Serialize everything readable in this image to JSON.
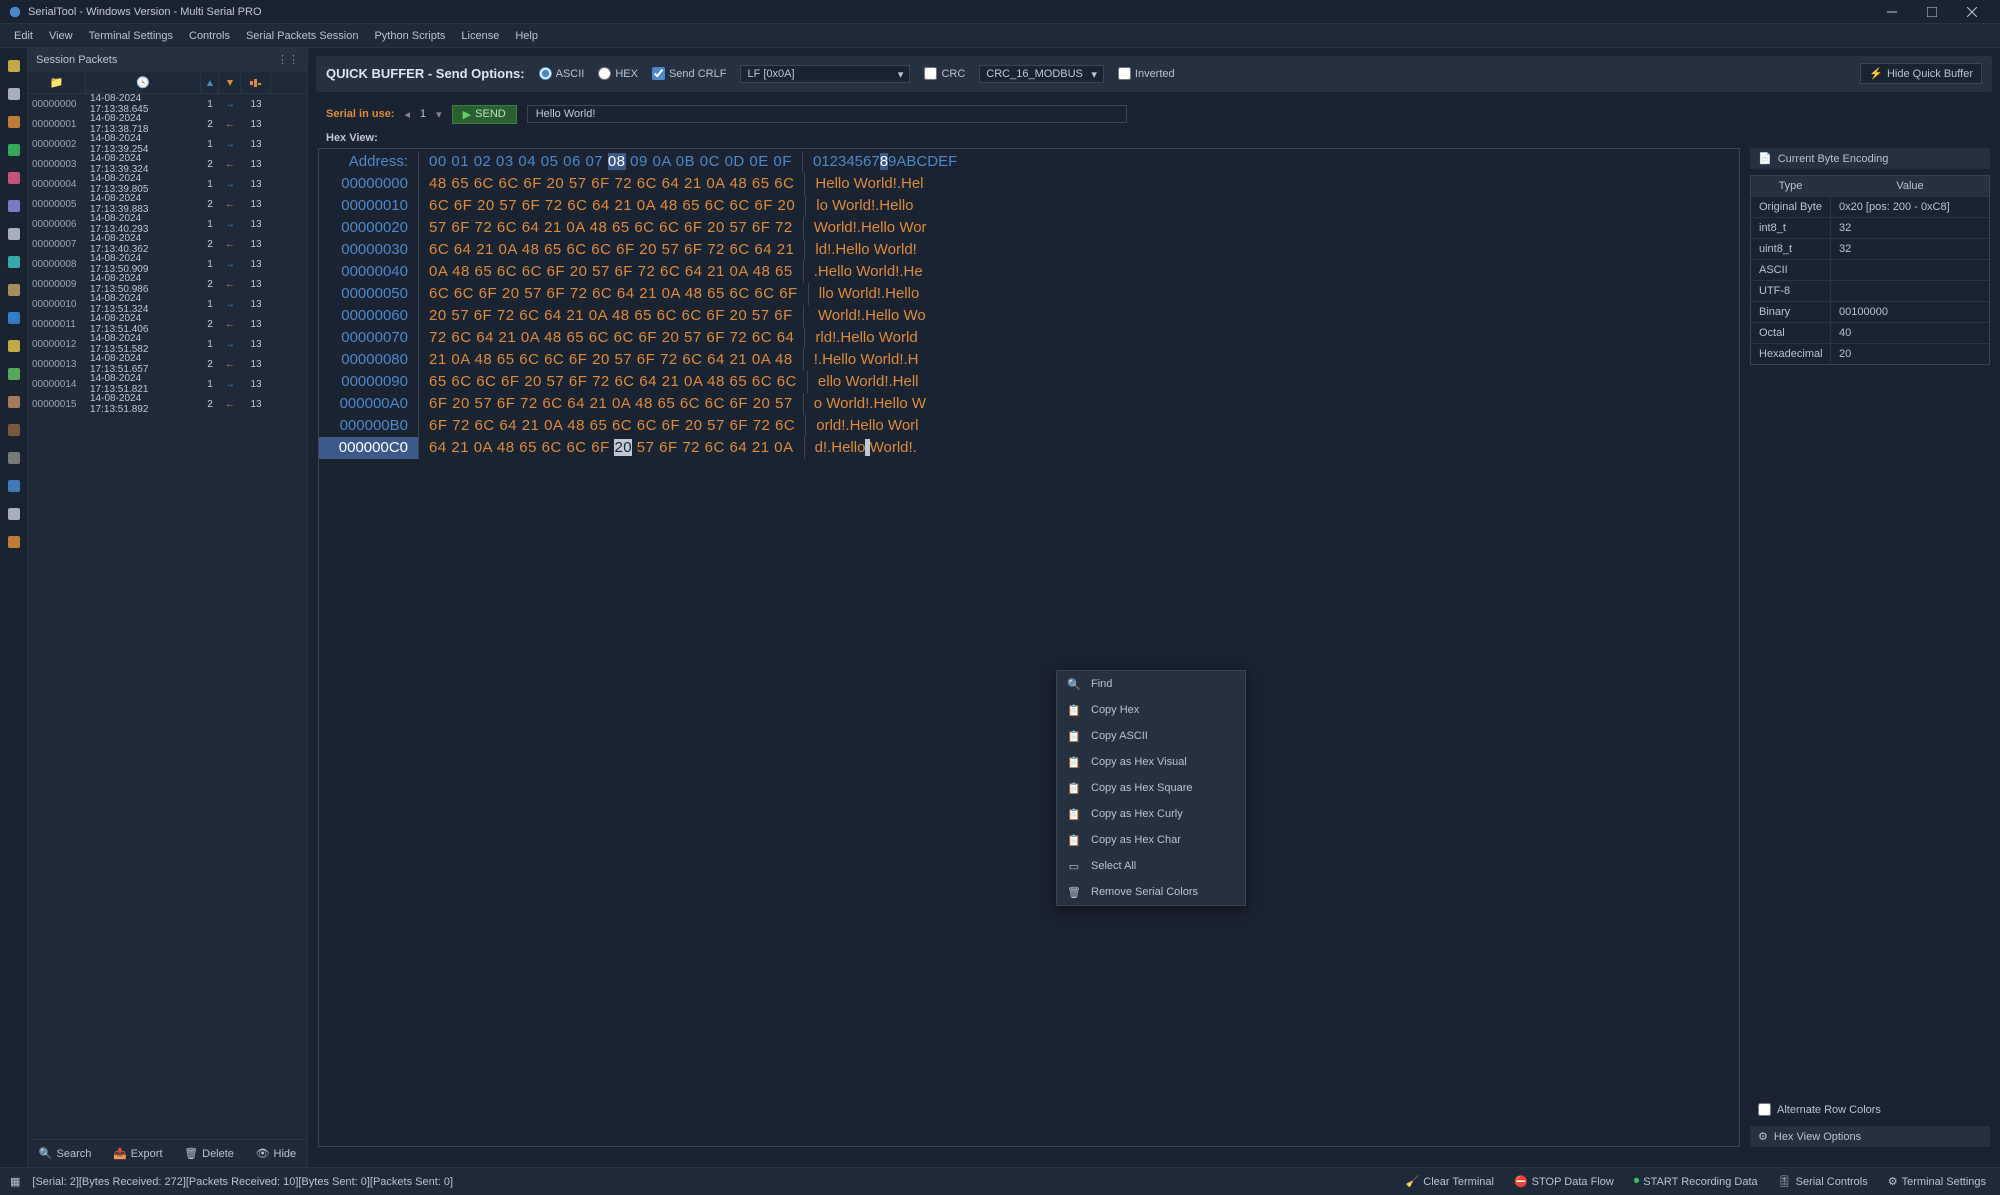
{
  "window": {
    "title": "SerialTool - Windows Version  - Multi Serial PRO"
  },
  "menubar": [
    "Edit",
    "View",
    "Terminal Settings",
    "Controls",
    "Serial Packets Session",
    "Python Scripts",
    "License",
    "Help"
  ],
  "session": {
    "title": "Session Packets",
    "rows": [
      {
        "id": "00000000",
        "time": "14-08-2024 17:13:38.645",
        "n": "1",
        "dir": "rx",
        "bytes": "13"
      },
      {
        "id": "00000001",
        "time": "14-08-2024 17:13:38.718",
        "n": "2",
        "dir": "tx",
        "bytes": "13"
      },
      {
        "id": "00000002",
        "time": "14-08-2024 17:13:39.254",
        "n": "1",
        "dir": "rx",
        "bytes": "13"
      },
      {
        "id": "00000003",
        "time": "14-08-2024 17:13:39.324",
        "n": "2",
        "dir": "tx",
        "bytes": "13"
      },
      {
        "id": "00000004",
        "time": "14-08-2024 17:13:39.805",
        "n": "1",
        "dir": "rx",
        "bytes": "13"
      },
      {
        "id": "00000005",
        "time": "14-08-2024 17:13:39.883",
        "n": "2",
        "dir": "tx",
        "bytes": "13"
      },
      {
        "id": "00000006",
        "time": "14-08-2024 17:13:40.293",
        "n": "1",
        "dir": "rx",
        "bytes": "13"
      },
      {
        "id": "00000007",
        "time": "14-08-2024 17:13:40.362",
        "n": "2",
        "dir": "tx",
        "bytes": "13"
      },
      {
        "id": "00000008",
        "time": "14-08-2024 17:13:50.909",
        "n": "1",
        "dir": "rx",
        "bytes": "13"
      },
      {
        "id": "00000009",
        "time": "14-08-2024 17:13:50.986",
        "n": "2",
        "dir": "tx",
        "bytes": "13"
      },
      {
        "id": "00000010",
        "time": "14-08-2024 17:13:51.324",
        "n": "1",
        "dir": "rx",
        "bytes": "13"
      },
      {
        "id": "00000011",
        "time": "14-08-2024 17:13:51.406",
        "n": "2",
        "dir": "tx",
        "bytes": "13"
      },
      {
        "id": "00000012",
        "time": "14-08-2024 17:13:51.582",
        "n": "1",
        "dir": "rx",
        "bytes": "13"
      },
      {
        "id": "00000013",
        "time": "14-08-2024 17:13:51.657",
        "n": "2",
        "dir": "tx",
        "bytes": "13"
      },
      {
        "id": "00000014",
        "time": "14-08-2024 17:13:51.821",
        "n": "1",
        "dir": "rx",
        "bytes": "13"
      },
      {
        "id": "00000015",
        "time": "14-08-2024 17:13:51.892",
        "n": "2",
        "dir": "tx",
        "bytes": "13"
      }
    ],
    "footer": {
      "search": "Search",
      "export": "Export",
      "delete": "Delete",
      "hide": "Hide"
    }
  },
  "quickbuf": {
    "title": "QUICK BUFFER - Send Options:",
    "ascii": "ASCII",
    "hex": "HEX",
    "sendcrlf": "Send CRLF",
    "lf_option": "LF [0x0A]",
    "crc": "CRC",
    "crc_option": "CRC_16_MODBUS",
    "inverted": "Inverted",
    "hide": "Hide Quick Buffer"
  },
  "serialbar": {
    "label": "Serial in use:",
    "port": "1",
    "send": "SEND",
    "input": "Hello World!"
  },
  "hexview": {
    "label": "Hex View:",
    "header_addr": "Address:",
    "header_bytes": "00 01 02 03 04 05 06 07 08 09 0A 0B 0C 0D 0E 0F",
    "header_ascii": "0123456789ABCDEF",
    "sel_byte_col": 8,
    "sel_ascii_col": 8,
    "rows": [
      {
        "addr": "00000000",
        "bytes": "48 65 6C 6C 6F 20 57 6F 72 6C 64 21 0A 48 65 6C",
        "ascii": "Hello World!.Hel"
      },
      {
        "addr": "00000010",
        "bytes": "6C 6F 20 57 6F 72 6C 64 21 0A 48 65 6C 6C 6F 20",
        "ascii": "lo World!.Hello "
      },
      {
        "addr": "00000020",
        "bytes": "57 6F 72 6C 64 21 0A 48 65 6C 6C 6F 20 57 6F 72",
        "ascii": "World!.Hello Wor"
      },
      {
        "addr": "00000030",
        "bytes": "6C 64 21 0A 48 65 6C 6C 6F 20 57 6F 72 6C 64 21",
        "ascii": "ld!.Hello World!"
      },
      {
        "addr": "00000040",
        "bytes": "0A 48 65 6C 6C 6F 20 57 6F 72 6C 64 21 0A 48 65",
        "ascii": ".Hello World!.He"
      },
      {
        "addr": "00000050",
        "bytes": "6C 6C 6F 20 57 6F 72 6C 64 21 0A 48 65 6C 6C 6F",
        "ascii": "llo World!.Hello"
      },
      {
        "addr": "00000060",
        "bytes": "20 57 6F 72 6C 64 21 0A 48 65 6C 6C 6F 20 57 6F",
        "ascii": " World!.Hello Wo"
      },
      {
        "addr": "00000070",
        "bytes": "72 6C 64 21 0A 48 65 6C 6C 6F 20 57 6F 72 6C 64",
        "ascii": "rld!.Hello World"
      },
      {
        "addr": "00000080",
        "bytes": "21 0A 48 65 6C 6C 6F 20 57 6F 72 6C 64 21 0A 48",
        "ascii": "!.Hello World!.H"
      },
      {
        "addr": "00000090",
        "bytes": "65 6C 6C 6F 20 57 6F 72 6C 64 21 0A 48 65 6C 6C",
        "ascii": "ello World!.Hell"
      },
      {
        "addr": "000000A0",
        "bytes": "6F 20 57 6F 72 6C 64 21 0A 48 65 6C 6C 6F 20 57",
        "ascii": "o World!.Hello W"
      },
      {
        "addr": "000000B0",
        "bytes": "6F 72 6C 64 21 0A 48 65 6C 6C 6F 20 57 6F 72 6C",
        "ascii": "orld!.Hello Worl"
      },
      {
        "addr": "000000C0",
        "bytes": "64 21 0A 48 65 6C 6C 6F 20 57 6F 72 6C 64 21 0A",
        "ascii": "d!.Hello World!.",
        "cursor_col": 8,
        "ascii_cursor_col": 8,
        "addr_sel": true
      }
    ]
  },
  "encoding": {
    "title": "Current Byte Encoding",
    "cols": {
      "type": "Type",
      "value": "Value"
    },
    "rows": [
      {
        "type": "Original Byte",
        "value": "0x20  [pos: 200 - 0xC8]"
      },
      {
        "type": "int8_t",
        "value": "32"
      },
      {
        "type": "uint8_t",
        "value": "32"
      },
      {
        "type": "ASCII",
        "value": ""
      },
      {
        "type": "UTF-8",
        "value": ""
      },
      {
        "type": "Binary",
        "value": "00100000"
      },
      {
        "type": "Octal",
        "value": "40"
      },
      {
        "type": "Hexadecimal",
        "value": "20"
      }
    ],
    "alternate": "Alternate Row Colors",
    "options": "Hex View Options"
  },
  "context_menu": {
    "items": [
      "Find",
      "Copy Hex",
      "Copy ASCII",
      "Copy as Hex Visual",
      "Copy as Hex Square",
      "Copy as Hex Curly",
      "Copy as Hex Char",
      "Select All",
      "Remove Serial Colors"
    ]
  },
  "statusbar": {
    "info": "[Serial: 2][Bytes Received: 272][Packets Received: 10][Bytes Sent: 0][Packets Sent: 0]",
    "clear": "Clear Terminal",
    "stop": "STOP Data Flow",
    "start": "START Recording Data",
    "serialctrl": "Serial Controls",
    "termset": "Terminal Settings"
  },
  "colors": {
    "bg": "#1a2332",
    "panel": "#1e2a3a",
    "panel2": "#253040",
    "border": "#2a3544",
    "text": "#c0c8d4",
    "accent_blue": "#4a8acc",
    "accent_orange": "#e08a3a",
    "sel": "#3a5a8a"
  }
}
